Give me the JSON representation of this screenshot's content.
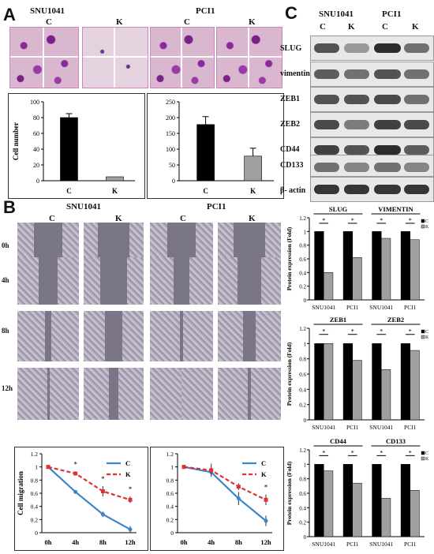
{
  "panelA": {
    "letter": "A",
    "cell_lines": [
      "SNU1041",
      "PCI1"
    ],
    "group_labels": [
      "C",
      "K",
      "C",
      "K"
    ],
    "ylabel": "Cell number"
  },
  "panelB": {
    "letter": "B",
    "cell_lines": [
      "SNU1041",
      "PCI1"
    ],
    "group_labels": [
      "C",
      "K",
      "C",
      "K"
    ],
    "times": [
      "0h",
      "4h",
      "8h",
      "12h"
    ],
    "ylabel": "Cell migration"
  },
  "panelC": {
    "letter": "C",
    "cell_lines": [
      "SNU1041",
      "PCI1"
    ],
    "group_labels": [
      "C",
      "K",
      "C",
      "K"
    ],
    "proteins": [
      "SLUG",
      "vimentin",
      "ZEB1",
      "ZEB2",
      "CD44",
      "CD133",
      "β- actin"
    ],
    "ylabel": "Protein expression (Fold)"
  },
  "chart_data": [
    {
      "id": "A1",
      "type": "bar",
      "categories": [
        "C",
        "K"
      ],
      "values": [
        80,
        5
      ],
      "errors": [
        5,
        0
      ],
      "ylabel": "Cell number",
      "ylim": [
        0,
        100
      ],
      "yticks": [
        0,
        20,
        40,
        60,
        80,
        100
      ],
      "colors": [
        "#000000",
        "#a0a0a0"
      ]
    },
    {
      "id": "A2",
      "type": "bar",
      "categories": [
        "C",
        "K"
      ],
      "values": [
        178,
        78
      ],
      "errors": [
        25,
        25
      ],
      "ylim": [
        0,
        250
      ],
      "yticks": [
        0,
        50,
        100,
        150,
        200,
        250
      ],
      "colors": [
        "#000000",
        "#a0a0a0"
      ]
    },
    {
      "id": "B1",
      "type": "line",
      "x": [
        "0h",
        "4h",
        "8h",
        "12h"
      ],
      "ylabel": "Cell migration",
      "ylim": [
        0,
        1.2
      ],
      "yticks": [
        0,
        0.2,
        0.4,
        0.6,
        0.8,
        1,
        1.2
      ],
      "series": [
        {
          "name": "C",
          "values": [
            1,
            0.62,
            0.28,
            0.05
          ],
          "errors": [
            0,
            0.02,
            0.04,
            0.05
          ],
          "color": "#3a86c8"
        },
        {
          "name": "K",
          "values": [
            1,
            0.9,
            0.63,
            0.5
          ],
          "errors": [
            0,
            0.03,
            0.08,
            0.05
          ],
          "color": "#e03030"
        }
      ],
      "annotations": [
        "*",
        "*",
        "*"
      ]
    },
    {
      "id": "B2",
      "type": "line",
      "x": [
        "0h",
        "4h",
        "8h",
        "12h"
      ],
      "ylim": [
        0,
        1.2
      ],
      "yticks": [
        0,
        0.2,
        0.4,
        0.6,
        0.8,
        1,
        1.2
      ],
      "series": [
        {
          "name": "C",
          "values": [
            1,
            0.92,
            0.52,
            0.18
          ],
          "errors": [
            0,
            0.05,
            0.1,
            0.08
          ],
          "color": "#3a86c8"
        },
        {
          "name": "K",
          "values": [
            1,
            0.95,
            0.7,
            0.5
          ],
          "errors": [
            0,
            0.1,
            0.05,
            0.08
          ],
          "color": "#e03030"
        }
      ],
      "annotations": [
        "*"
      ]
    },
    {
      "id": "C1",
      "type": "bar",
      "groups": [
        "SNU1041",
        "PCI1",
        "SNU1041",
        "PCI1"
      ],
      "headers": [
        "SLUG",
        "VIMENTIN"
      ],
      "ylabel": "Protein expression (Fold)",
      "ylim": [
        0,
        1.2
      ],
      "yticks": [
        0,
        0.2,
        0.4,
        0.6,
        0.8,
        1,
        1.2
      ],
      "series": [
        {
          "name": "C",
          "values": [
            1,
            1,
            1,
            1
          ],
          "color": "#000000"
        },
        {
          "name": "K",
          "values": [
            0.4,
            0.62,
            0.9,
            0.88
          ],
          "color": "#a0a0a0"
        }
      ]
    },
    {
      "id": "C2",
      "type": "bar",
      "groups": [
        "SNU1041",
        "PCI1",
        "SNU1041",
        "PCI1"
      ],
      "headers": [
        "ZEB1",
        "ZEB2"
      ],
      "ylabel": "Protein expression (Fold)",
      "ylim": [
        0,
        1.2
      ],
      "yticks": [
        0,
        0.2,
        0.4,
        0.6,
        0.8,
        1,
        1.2
      ],
      "series": [
        {
          "name": "C",
          "values": [
            1,
            1,
            1,
            1
          ],
          "color": "#000000"
        },
        {
          "name": "K",
          "values": [
            1,
            0.78,
            0.66,
            0.91
          ],
          "color": "#a0a0a0"
        }
      ]
    },
    {
      "id": "C3",
      "type": "bar",
      "groups": [
        "SNU1041",
        "PCI1",
        "SNU1041",
        "PCI1"
      ],
      "headers": [
        "CD44",
        "CD133"
      ],
      "ylabel": "Protein expression (Fold)",
      "ylim": [
        0,
        1.2
      ],
      "yticks": [
        0,
        0.2,
        0.4,
        0.6,
        0.8,
        1,
        1.2
      ],
      "series": [
        {
          "name": "C",
          "values": [
            1,
            1,
            1,
            1
          ],
          "color": "#000000"
        },
        {
          "name": "K",
          "values": [
            0.91,
            0.74,
            0.53,
            0.64
          ],
          "color": "#a0a0a0"
        }
      ]
    }
  ]
}
